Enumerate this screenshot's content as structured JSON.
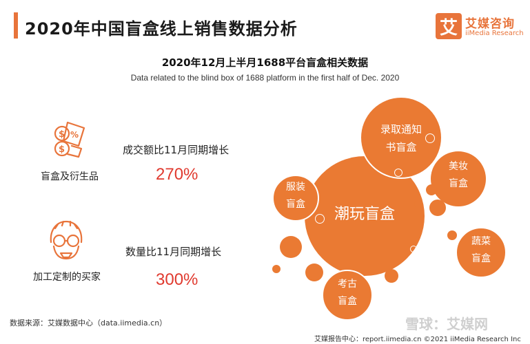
{
  "header": {
    "title": "2020年中国盲盒线上销售数据分析",
    "logo_mark": "艾",
    "logo_cn": "艾媒咨询",
    "logo_en": "iiMedia Research"
  },
  "subtitle": {
    "cn": "2020年12月上半月1688平台盲盒相关数据",
    "en": "Data related to the blind box of 1688 platform in the first half of Dec. 2020"
  },
  "stats": [
    {
      "icon": "money-document-icon",
      "left_label": "盲盒及衍生品",
      "metric": "成交额比11月同期增长",
      "value": "270%"
    },
    {
      "icon": "glasses-face-icon",
      "left_label": "加工定制的买家",
      "metric": "数量比11月同期增长",
      "value": "300%"
    }
  ],
  "bubbles": [
    {
      "text": "潮玩盲盒"
    },
    {
      "text_line1": "录取通知",
      "text_line2": "书盲盒"
    },
    {
      "text_line1": "美妆",
      "text_line2": "盲盒"
    },
    {
      "text_line1": "服装",
      "text_line2": "盲盒"
    },
    {
      "text_line1": "蔬菜",
      "text_line2": "盲盒"
    },
    {
      "text_line1": "考古",
      "text_line2": "盲盒"
    }
  ],
  "footer": {
    "source": "数据来源：艾媒数据中心（data.iimedia.cn）",
    "right": "艾媒报告中心：report.iimedia.cn  ©2021  iiMedia Research  Inc",
    "watermark": "雪球：艾媒网"
  },
  "colors": {
    "accent": "#e8743b",
    "highlight": "#e03a2f"
  }
}
